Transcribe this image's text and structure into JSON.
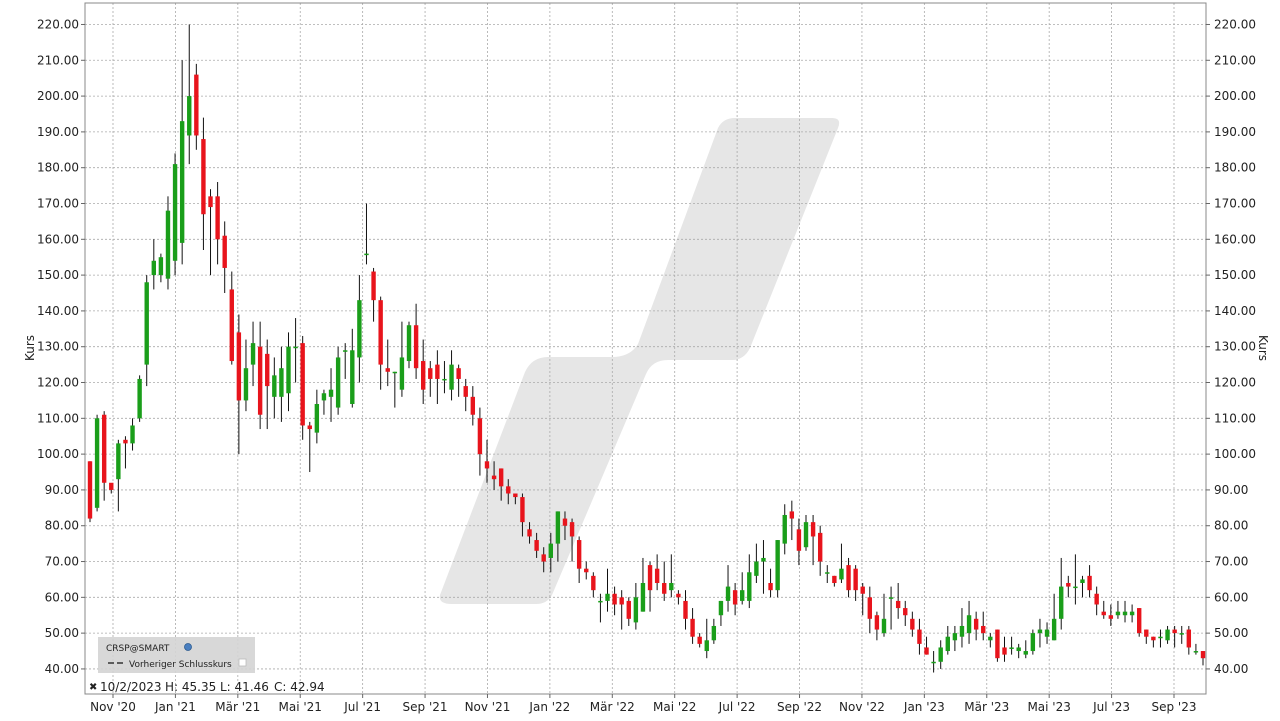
{
  "chart_data": {
    "type": "candlestick",
    "symbol_label": "CRSP@SMART",
    "legend_item": "Vorheriger Schlusskurs",
    "ylabel": "Kurs",
    "ylim": [
      33,
      226
    ],
    "y_ticks": [
      "220.00",
      "210.00",
      "200.00",
      "190.00",
      "180.00",
      "170.00",
      "160.00",
      "150.00",
      "140.00",
      "130.00",
      "120.00",
      "110.00",
      "100.00",
      "90.00",
      "80.00",
      "70.00",
      "60.00",
      "50.00",
      "40.00"
    ],
    "x_tick_labels": [
      "Nov '20",
      "Jan '21",
      "Mär '21",
      "Mai '21",
      "Jul '21",
      "Sep '21",
      "Nov '21",
      "Jan '22",
      "Mär '22",
      "Mai '22",
      "Jul '22",
      "Sep '22",
      "Nov '22",
      "Jan '23",
      "Mär '23",
      "Mai '23",
      "Jul '23",
      "Sep '23"
    ],
    "info": {
      "date": "10/2/2023",
      "high": "H: 45.35",
      "low": "L: 41.46",
      "close": "C: 42.94"
    },
    "colors": {
      "up": "#1a9e1a",
      "down": "#e8141c",
      "grid": "#aaaaaa",
      "watermark": "#e6e6e6"
    },
    "candles": [
      [
        98,
        82,
        98,
        81
      ],
      [
        85,
        110,
        111,
        84
      ],
      [
        111,
        92,
        112,
        87
      ],
      [
        92,
        90,
        91,
        89
      ],
      [
        93,
        103,
        104,
        84
      ],
      [
        104,
        103,
        105,
        96
      ],
      [
        103,
        108,
        110,
        101
      ],
      [
        110,
        121,
        122,
        109
      ],
      [
        125,
        148,
        150,
        119
      ],
      [
        150,
        154,
        160,
        146
      ],
      [
        150,
        155,
        156,
        148
      ],
      [
        149,
        168,
        172,
        146
      ],
      [
        154,
        181,
        184,
        150
      ],
      [
        159,
        193,
        210,
        153
      ],
      [
        189,
        200,
        220,
        181
      ],
      [
        206,
        189,
        209,
        185
      ],
      [
        188,
        167,
        194,
        157
      ],
      [
        172,
        169,
        174,
        150
      ],
      [
        172,
        160,
        176,
        153
      ],
      [
        161,
        152,
        165,
        145
      ],
      [
        146,
        126,
        151,
        125
      ],
      [
        134,
        115,
        139,
        100
      ],
      [
        115,
        124,
        132,
        112
      ],
      [
        125,
        131,
        137,
        119
      ],
      [
        130,
        111,
        137,
        107
      ],
      [
        128,
        119,
        132,
        107
      ],
      [
        116,
        122,
        127,
        110
      ],
      [
        116,
        124,
        130,
        109
      ],
      [
        117,
        130,
        134,
        112
      ],
      [
        130,
        130,
        138,
        120
      ],
      [
        131,
        108,
        133,
        104
      ],
      [
        108,
        107,
        109,
        95
      ],
      [
        106,
        114,
        118,
        103
      ],
      [
        115,
        117,
        118,
        111
      ],
      [
        116,
        118,
        124,
        109
      ],
      [
        113,
        127,
        130,
        111
      ],
      [
        129,
        129,
        131,
        121
      ],
      [
        114,
        129,
        135,
        113
      ],
      [
        127,
        143,
        150,
        120
      ],
      [
        156,
        156,
        170,
        153
      ],
      [
        151,
        143,
        152,
        137
      ],
      [
        143,
        125,
        144,
        118
      ],
      [
        124,
        123,
        132,
        119
      ],
      [
        123,
        123,
        123,
        113
      ],
      [
        118,
        127,
        137,
        116
      ],
      [
        126,
        136,
        137,
        124
      ],
      [
        136,
        124,
        142,
        121
      ],
      [
        126,
        118,
        132,
        114
      ],
      [
        124,
        121,
        126,
        116
      ],
      [
        125,
        121,
        129,
        114
      ],
      [
        121,
        121,
        126,
        117
      ],
      [
        118,
        125,
        129,
        115
      ],
      [
        124,
        121,
        125,
        116
      ],
      [
        119,
        116,
        121,
        112
      ],
      [
        116,
        111,
        119,
        108
      ],
      [
        110,
        100,
        113,
        94
      ],
      [
        98,
        96,
        104,
        92
      ],
      [
        94,
        93,
        98,
        90
      ],
      [
        96,
        91,
        96,
        87
      ],
      [
        91,
        89,
        93,
        86
      ],
      [
        89,
        88,
        89,
        86
      ],
      [
        88,
        81,
        89,
        77
      ],
      [
        79,
        77,
        81,
        75
      ],
      [
        76,
        73,
        78,
        71
      ],
      [
        72,
        70,
        74,
        67
      ],
      [
        71,
        75,
        78,
        67
      ],
      [
        75,
        84,
        84,
        70
      ],
      [
        82,
        80,
        84,
        76
      ],
      [
        81,
        77,
        82,
        70
      ],
      [
        76,
        68,
        77,
        64
      ],
      [
        68,
        67,
        70,
        65
      ],
      [
        66,
        62,
        67,
        60
      ],
      [
        59,
        59,
        61,
        53
      ],
      [
        59,
        61,
        68,
        56
      ],
      [
        61,
        58,
        63,
        55
      ],
      [
        60,
        58,
        62,
        51
      ],
      [
        59,
        54,
        60,
        52
      ],
      [
        53,
        60,
        64,
        51
      ],
      [
        56,
        64,
        71,
        56
      ],
      [
        69,
        62,
        70,
        56
      ],
      [
        68,
        64,
        72,
        62
      ],
      [
        64,
        61,
        70,
        59
      ],
      [
        62,
        64,
        72,
        60
      ],
      [
        61,
        60,
        62,
        58
      ],
      [
        59,
        54,
        62,
        51
      ],
      [
        54,
        49,
        57,
        47
      ],
      [
        49,
        47,
        50,
        46
      ],
      [
        45,
        48,
        54,
        43
      ],
      [
        48,
        52,
        54,
        47
      ],
      [
        55,
        59,
        59,
        52
      ],
      [
        59,
        63,
        69,
        56
      ],
      [
        62,
        58,
        64,
        55
      ],
      [
        59,
        62,
        67,
        58
      ],
      [
        59,
        67,
        72,
        57
      ],
      [
        66,
        70,
        75,
        64
      ],
      [
        70,
        71,
        76,
        61
      ],
      [
        64,
        62,
        68,
        60
      ],
      [
        62,
        76,
        76,
        60
      ],
      [
        75,
        83,
        86,
        72
      ],
      [
        84,
        82,
        87,
        76
      ],
      [
        79,
        73,
        82,
        69
      ],
      [
        74,
        81,
        83,
        73
      ],
      [
        81,
        77,
        83,
        69
      ],
      [
        78,
        70,
        80,
        66
      ],
      [
        67,
        67,
        69,
        64
      ],
      [
        66,
        64,
        66,
        63
      ],
      [
        65,
        68,
        75,
        64
      ],
      [
        69,
        62,
        71,
        60
      ],
      [
        68,
        62,
        69,
        59
      ],
      [
        63,
        61,
        64,
        55
      ],
      [
        60,
        54,
        63,
        50
      ],
      [
        55,
        51,
        56,
        48
      ],
      [
        50,
        54,
        61,
        49
      ],
      [
        60,
        60,
        63,
        51
      ],
      [
        59,
        57,
        64,
        54
      ],
      [
        57,
        55,
        59,
        52
      ],
      [
        54,
        51,
        56,
        49
      ],
      [
        51,
        47,
        54,
        44
      ],
      [
        46,
        44,
        49,
        44
      ],
      [
        42,
        42,
        45,
        39
      ],
      [
        42,
        46,
        48,
        40
      ],
      [
        45,
        49,
        52,
        44
      ],
      [
        48,
        50,
        52,
        45
      ],
      [
        49,
        52,
        57,
        46
      ],
      [
        50,
        55,
        59,
        47
      ],
      [
        54,
        51,
        56,
        48
      ],
      [
        52,
        50,
        56,
        48
      ],
      [
        48,
        49,
        50,
        46
      ],
      [
        51,
        43,
        51,
        42
      ],
      [
        46,
        44,
        49,
        42
      ],
      [
        46,
        46,
        49,
        44
      ],
      [
        45,
        46,
        47,
        43
      ],
      [
        44,
        45,
        48,
        43
      ],
      [
        45,
        50,
        51,
        44
      ],
      [
        50,
        51,
        54,
        46
      ],
      [
        49,
        51,
        53,
        47
      ],
      [
        48,
        54,
        61,
        48
      ],
      [
        54,
        63,
        71,
        51
      ],
      [
        64,
        63,
        66,
        60
      ],
      [
        63,
        63,
        72,
        58
      ],
      [
        64,
        65,
        66,
        60
      ],
      [
        66,
        62,
        69,
        60
      ],
      [
        61,
        58,
        63,
        55
      ],
      [
        56,
        55,
        59,
        54
      ],
      [
        55,
        54,
        58,
        52
      ],
      [
        55,
        56,
        59,
        54
      ],
      [
        55,
        56,
        59,
        53
      ],
      [
        55,
        56,
        58,
        53
      ],
      [
        57,
        50,
        57,
        49
      ],
      [
        51,
        49,
        51,
        47
      ],
      [
        49,
        48,
        49,
        46
      ],
      [
        49,
        49,
        51,
        46
      ],
      [
        48,
        51,
        52,
        47
      ],
      [
        51,
        50,
        52,
        46
      ],
      [
        50,
        50,
        52,
        47
      ],
      [
        51,
        46,
        52,
        44
      ],
      [
        45,
        45,
        47,
        44
      ],
      [
        45,
        43,
        45,
        41
      ]
    ]
  }
}
